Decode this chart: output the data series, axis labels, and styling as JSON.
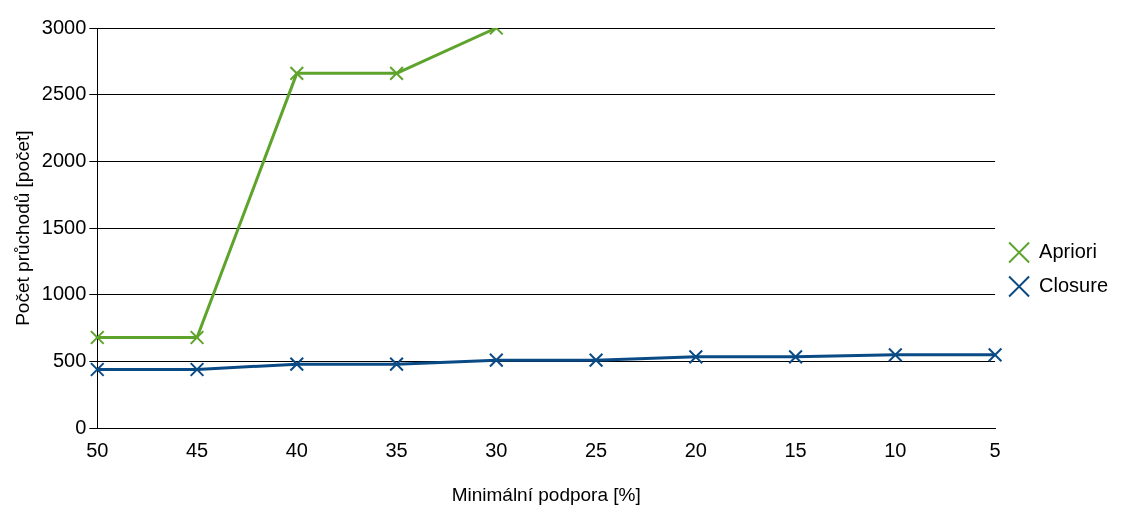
{
  "chart_data": {
    "type": "line",
    "xlabel": "Minimální podpora [%]",
    "ylabel": "Počet průchodů [počet]",
    "categories": [
      "50",
      "45",
      "40",
      "35",
      "30",
      "25",
      "20",
      "15",
      "10",
      "5"
    ],
    "series": [
      {
        "name": "Apriori",
        "color": "#5ea32c",
        "values": [
          680,
          680,
          2660,
          2660,
          3000,
          null,
          null,
          null,
          null,
          null
        ]
      },
      {
        "name": "Closure",
        "color": "#0a4a85",
        "values": [
          440,
          440,
          480,
          480,
          510,
          510,
          535,
          535,
          550,
          550
        ]
      }
    ],
    "ylim": [
      0,
      3000
    ],
    "yticks": [
      0,
      500,
      1000,
      1500,
      2000,
      2500,
      3000
    ],
    "grid": "y",
    "legend": "right",
    "marker": "cross",
    "line_style": "solid"
  }
}
